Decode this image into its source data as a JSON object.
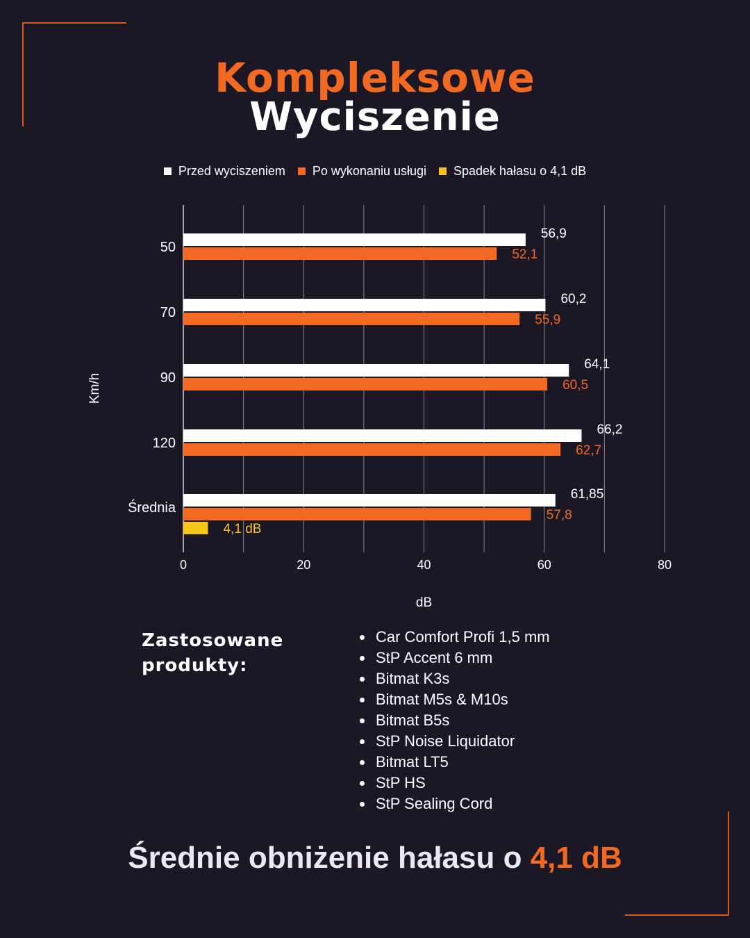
{
  "title": {
    "line1": "Kompleksowe",
    "line2": "Wyciszenie"
  },
  "legend": [
    {
      "label": "Przed wyciszeniem",
      "color": "#ffffff"
    },
    {
      "label": "Po wykonaniu usługi",
      "color": "#f26a21"
    },
    {
      "label": "Spadek hałasu o 4,1 dB",
      "color": "#f5c518"
    }
  ],
  "chart_data": {
    "type": "bar",
    "orientation": "horizontal",
    "categories": [
      "50",
      "70",
      "90",
      "120",
      "Średnia"
    ],
    "series": [
      {
        "name": "Przed wyciszeniem",
        "color": "#ffffff",
        "values": [
          56.9,
          60.2,
          64.1,
          66.2,
          61.85
        ],
        "labels": [
          "56,9",
          "60,2",
          "64,1",
          "66,2",
          "61,85"
        ]
      },
      {
        "name": "Po wykonaniu usługi",
        "color": "#f26a21",
        "values": [
          52.1,
          55.9,
          60.5,
          62.7,
          57.8
        ],
        "labels": [
          "52,1",
          "55,9",
          "60,5",
          "62,7",
          "57,8"
        ]
      },
      {
        "name": "Spadek hałasu o 4,1 dB",
        "color": "#f5c518",
        "values": [
          null,
          null,
          null,
          null,
          4.1
        ],
        "labels": [
          "",
          "",
          "",
          "",
          "4,1 dB"
        ]
      }
    ],
    "xlabel": "dB",
    "ylabel": "Km/h",
    "xlim": [
      0,
      80
    ],
    "xticks": [
      0,
      20,
      40,
      60,
      80
    ],
    "grid": true,
    "legend_position": "top"
  },
  "products": {
    "heading_line1": "Zastosowane",
    "heading_line2": "produkty:",
    "items": [
      "Car Comfort Profi 1,5 mm",
      "StP Accent 6 mm",
      "Bitmat K3s",
      "Bitmat M5s & M10s",
      "Bitmat B5s",
      "StP Noise Liquidator",
      "Bitmat LT5",
      "StP HS",
      "StP Sealing Cord"
    ]
  },
  "summary": {
    "text": "Średnie obniżenie hałasu o ",
    "highlight": "4,1 dB"
  }
}
